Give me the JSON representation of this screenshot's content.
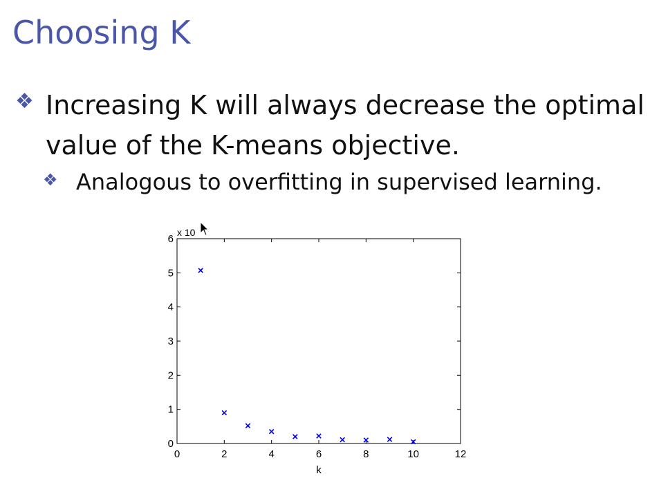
{
  "slide": {
    "title": "Choosing K",
    "bullets": [
      {
        "text": "Increasing K will always decrease the optimal value of the K-means objective."
      },
      {
        "text": "Analogous to overfitting in supervised learning."
      }
    ],
    "bullet_icon": "diamond-bullet-icon",
    "accent_color": "#4a57a8"
  },
  "chart_data": {
    "type": "scatter",
    "x": [
      1,
      2,
      3,
      4,
      5,
      6,
      7,
      8,
      9,
      10
    ],
    "y": [
      5.07,
      0.9,
      0.52,
      0.35,
      0.2,
      0.22,
      0.11,
      0.1,
      0.12,
      0.05
    ],
    "xlabel": "k",
    "ylabel": "",
    "y_multiplier_label": "x 10",
    "xlim": [
      0,
      12
    ],
    "ylim": [
      0,
      6
    ],
    "xticks": [
      "0",
      "2",
      "4",
      "6",
      "8",
      "10",
      "12"
    ],
    "yticks": [
      "0",
      "1",
      "2",
      "3",
      "4",
      "5",
      "6"
    ],
    "marker": "x",
    "marker_color": "#0000ee",
    "grid": false
  }
}
